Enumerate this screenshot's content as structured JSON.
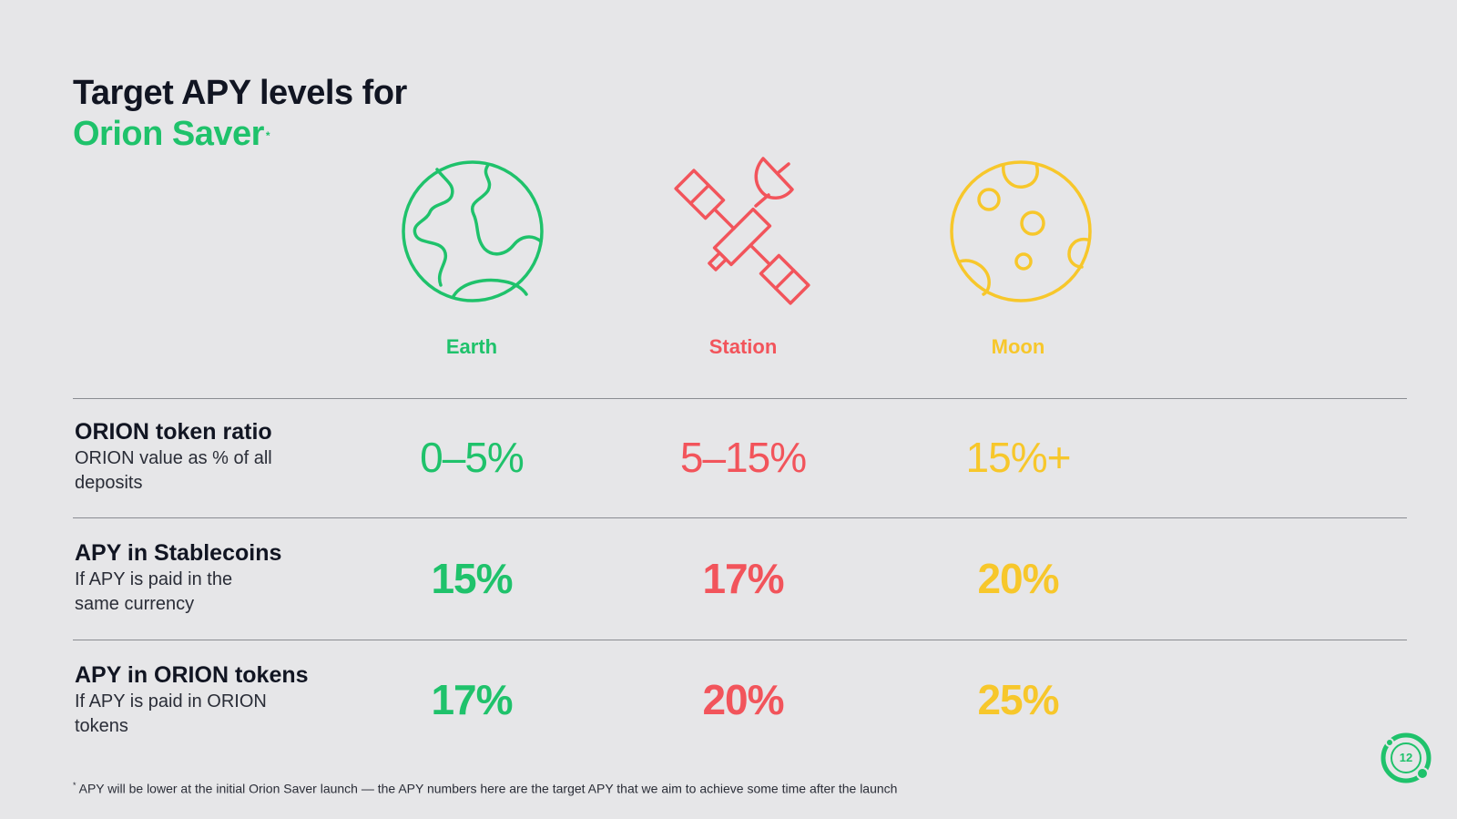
{
  "title": {
    "line1": "Target APY levels for",
    "line2": "Orion Saver",
    "marker": "*"
  },
  "columns": [
    {
      "name": "Earth",
      "icon": "earth-icon",
      "color": "#1fc26b"
    },
    {
      "name": "Station",
      "icon": "satellite-icon",
      "color": "#f2545b"
    },
    {
      "name": "Moon",
      "icon": "moon-icon",
      "color": "#f7c72b"
    }
  ],
  "rows": [
    {
      "title": "ORION token ratio",
      "subtitle": "ORION value as % of all deposits",
      "values": [
        "0–5%",
        "5–15%",
        "15%+"
      ]
    },
    {
      "title": "APY in Stablecoins",
      "subtitle": "If APY is paid in the same currency",
      "values": [
        "15%",
        "17%",
        "20%"
      ]
    },
    {
      "title": "APY in ORION tokens",
      "subtitle": "If APY is paid in ORION tokens",
      "values": [
        "17%",
        "20%",
        "25%"
      ]
    }
  ],
  "footnote": {
    "marker": "*",
    "text": " APY will be lower at the initial Orion Saver launch — the APY numbers here are the target APY that we aim to achieve some time after the launch"
  },
  "page_number": "12"
}
